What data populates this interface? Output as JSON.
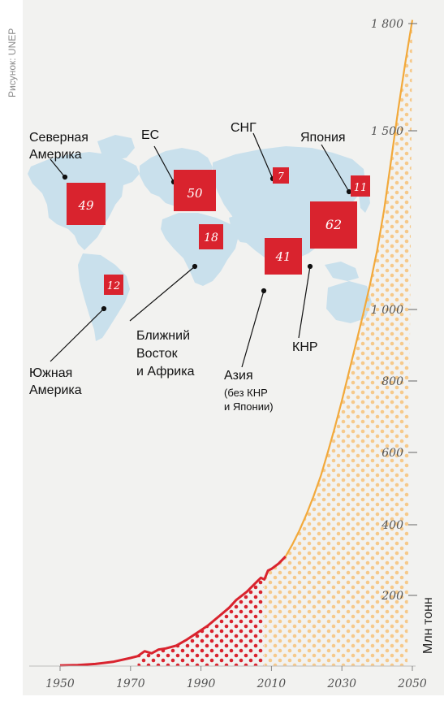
{
  "credit": "Рисунок: UNEP",
  "colors": {
    "background": "#f2f2f0",
    "map": "#c9e0ec",
    "historical": "#d9232e",
    "projection": "#f2a93b",
    "box": "#d9232e",
    "box_text": "#ffffff",
    "axis_text": "#555555"
  },
  "regions": [
    {
      "name": "Северная Америка",
      "value": "49"
    },
    {
      "name": "ЕС",
      "value": "50"
    },
    {
      "name": "СНГ",
      "value": "7"
    },
    {
      "name": "Япония",
      "value": "11"
    },
    {
      "name": "Ближний Восток и Африка",
      "value": "18"
    },
    {
      "name": "Южная Америка",
      "value": "12"
    },
    {
      "name": "Азия",
      "value": "41",
      "note": "(без КНР и Японии)"
    },
    {
      "name": "КНР",
      "value": "62"
    }
  ],
  "chart_data": {
    "type": "line",
    "ylabel": "Млн тонн",
    "xlim": [
      1945,
      2050
    ],
    "ylim": [
      0,
      1850
    ],
    "x_ticks": [
      1950,
      1970,
      1990,
      2010,
      2030,
      2050
    ],
    "x_tick_labels": [
      "1950",
      "1970",
      "1990",
      "2010",
      "2030",
      "2050"
    ],
    "y_ticks": [
      200,
      400,
      600,
      800,
      1000,
      1500,
      1800
    ],
    "y_tick_labels": [
      "200",
      "400",
      "600",
      "800",
      "1 000",
      "1 500",
      "1 800"
    ],
    "series": [
      {
        "style": "historical",
        "x": [
          1950,
          1955,
          1960,
          1965,
          1970,
          1972,
          1974,
          1976,
          1978,
          1980,
          1983,
          1986,
          1989,
          1992,
          1995,
          1998,
          2000,
          2003,
          2006,
          2007,
          2008,
          2009,
          2010,
          2012,
          2014
        ],
        "y": [
          1.5,
          3,
          6,
          12,
          23,
          28,
          42,
          36,
          47,
          50,
          58,
          75,
          95,
          115,
          140,
          165,
          187,
          210,
          240,
          250,
          245,
          270,
          275,
          290,
          310
        ]
      },
      {
        "style": "projection",
        "x": [
          2014,
          2016,
          2018,
          2020,
          2022,
          2024,
          2026,
          2028,
          2030,
          2032,
          2034,
          2036,
          2038,
          2040,
          2042,
          2044,
          2046,
          2048,
          2050
        ],
        "y": [
          310,
          345,
          385,
          430,
          480,
          535,
          600,
          670,
          745,
          825,
          905,
          985,
          1070,
          1165,
          1280,
          1420,
          1560,
          1690,
          1810
        ]
      }
    ]
  }
}
